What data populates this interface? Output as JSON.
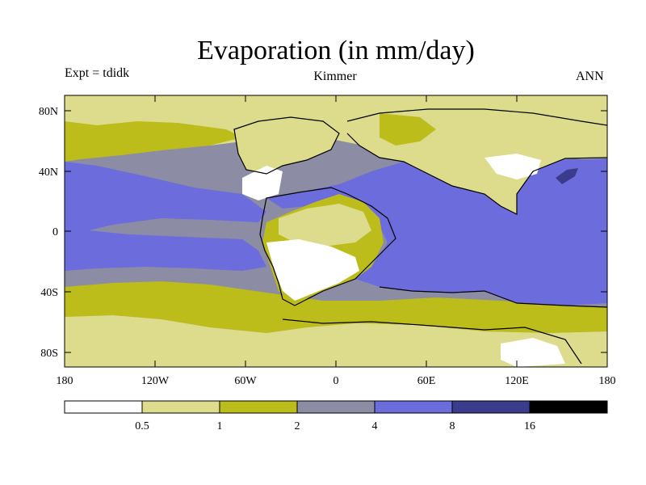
{
  "title": "Evaporation (in mm/day)",
  "experiment_label": "Expt = tdidk",
  "run_name": "Kimmer",
  "season": "ANN",
  "lat_tick_labels": [
    "80N",
    "40N",
    "0",
    "40S",
    "80S"
  ],
  "lon_tick_labels": [
    "180",
    "120W",
    "60W",
    "0",
    "60E",
    "120E",
    "180"
  ],
  "colorbar": {
    "boundaries": [
      "0.5",
      "1",
      "2",
      "4",
      "8",
      "16"
    ],
    "colors": [
      "#ffffff",
      "#dcdc8c",
      "#bcbc1a",
      "#8c8ca4",
      "#6c6cdc",
      "#3c3c8c",
      "#000000"
    ]
  },
  "palette": {
    "white": "#ffffff",
    "light_yellow": "#dcdc8c",
    "olive": "#bcbc1a",
    "gray": "#8c8ca4",
    "blue": "#6c6cdc",
    "dark_blue": "#3c3c8c"
  }
}
